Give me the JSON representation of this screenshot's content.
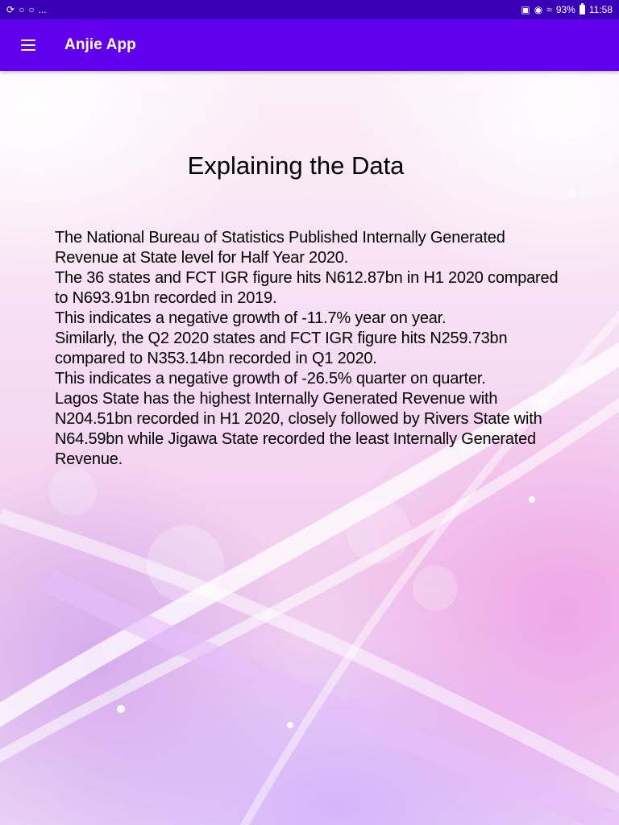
{
  "status_bar": {
    "left_icons": [
      "sync-icon",
      "whatsapp-icon",
      "whatsapp-icon"
    ],
    "overflow": "...",
    "battery_percent": "93%",
    "time": "11:58"
  },
  "app_bar": {
    "title": "Anjie App",
    "color": "#6200ee",
    "status_color": "#3a00b8"
  },
  "main": {
    "heading": "Explaining the Data",
    "paragraphs": [
      "The National Bureau of Statistics Published Internally Generated Revenue at State level for Half Year 2020.",
      "The 36 states and FCT IGR figure hits N612.87bn in H1 2020 compared to N693.91bn recorded in 2019.",
      "This indicates a negative growth of -11.7% year on year.",
      "Similarly, the Q2 2020 states and FCT IGR figure hits N259.73bn compared to N353.14bn recorded in Q1 2020.",
      "This indicates a negative growth of -26.5% quarter on quarter.",
      "Lagos State has the highest Internally Generated Revenue with N204.51bn recorded in H1 2020, closely followed by Rivers State with N64.59bn while Jigawa State recorded the least Internally Generated Revenue."
    ]
  }
}
